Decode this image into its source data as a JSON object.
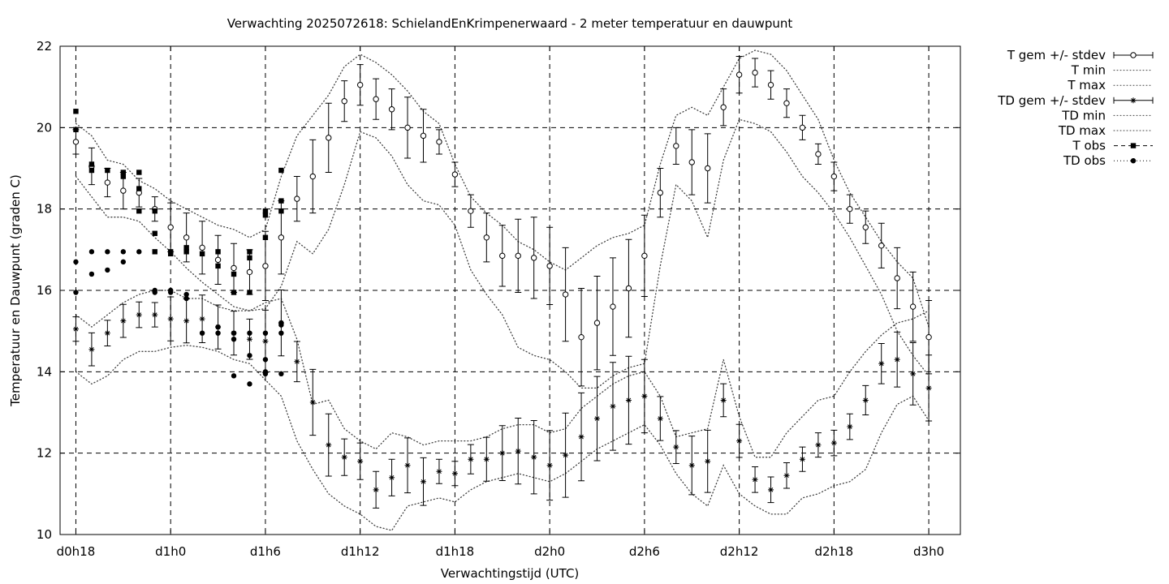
{
  "chart_data": {
    "type": "line",
    "title": "Verwachting 2025072618: SchielandEnKrimpenerwaard - 2 meter temperatuur en dauwpunt",
    "xlabel": "Verwachtingstijd (UTC)",
    "ylabel": "Temperatuur en Dauwpunt (graden C)",
    "ylim": [
      10,
      22
    ],
    "xlim": [
      17,
      74
    ],
    "x_unit": "hours since d0h0",
    "yticks": [
      "10",
      "12",
      "14",
      "16",
      "18",
      "20",
      "22"
    ],
    "yticks_values": [
      10,
      12,
      14,
      16,
      18,
      20,
      22
    ],
    "xticks": [
      "d0h18",
      "d1h0",
      "d1h6",
      "d1h12",
      "d1h18",
      "d2h0",
      "d2h6",
      "d2h12",
      "d2h18",
      "d3h0"
    ],
    "xticks_values": [
      18,
      24,
      30,
      36,
      42,
      48,
      54,
      60,
      66,
      72
    ],
    "grid": true,
    "legend_position": "outside-right",
    "legend": [
      "T gem +/- stdev",
      "T min",
      "T max",
      "TD gem +/- stdev",
      "TD min",
      "TD max",
      "T obs",
      "TD obs"
    ],
    "series": [
      {
        "name": "T gem +/- stdev",
        "style": "open-circle-errorbars",
        "x": [
          18,
          19,
          20,
          21,
          22,
          23,
          24,
          25,
          26,
          27,
          28,
          29,
          30,
          31,
          32,
          33,
          34,
          35,
          36,
          37,
          38,
          39,
          40,
          41,
          42,
          43,
          44,
          45,
          46,
          47,
          48,
          49,
          50,
          51,
          52,
          53,
          54,
          55,
          56,
          57,
          58,
          59,
          60,
          61,
          62,
          63,
          64,
          65,
          66,
          67,
          68,
          69,
          70,
          71,
          72
        ],
        "mean": [
          19.65,
          19.05,
          18.65,
          18.45,
          18.4,
          18.0,
          17.55,
          17.3,
          17.05,
          16.75,
          16.55,
          16.45,
          16.6,
          17.3,
          18.25,
          18.8,
          19.75,
          20.65,
          21.05,
          20.7,
          20.45,
          20.0,
          19.8,
          19.65,
          18.85,
          17.95,
          17.3,
          16.85,
          16.85,
          16.8,
          16.6,
          15.9,
          14.85,
          15.2,
          15.6,
          16.05,
          16.85,
          18.4,
          19.55,
          19.15,
          19.0,
          20.5,
          21.3,
          21.35,
          21.05,
          20.6,
          20.0,
          19.35,
          18.8,
          18.0,
          17.55,
          17.1,
          16.3,
          15.6,
          14.85
        ],
        "stdev": [
          0.3,
          0.45,
          0.35,
          0.45,
          0.35,
          0.3,
          0.6,
          0.6,
          0.65,
          0.6,
          0.6,
          0.55,
          0.85,
          0.9,
          0.55,
          0.9,
          0.85,
          0.5,
          0.5,
          0.5,
          0.5,
          0.75,
          0.65,
          0.3,
          0.3,
          0.4,
          0.6,
          0.75,
          0.9,
          1.0,
          0.95,
          1.15,
          1.2,
          1.15,
          1.2,
          1.2,
          1.0,
          0.6,
          0.45,
          0.8,
          0.85,
          0.45,
          0.45,
          0.35,
          0.35,
          0.35,
          0.3,
          0.25,
          0.35,
          0.35,
          0.4,
          0.55,
          0.75,
          0.85,
          0.9
        ]
      },
      {
        "name": "T min",
        "style": "dotted",
        "x": [
          18,
          19,
          20,
          21,
          22,
          23,
          24,
          25,
          26,
          27,
          28,
          29,
          30,
          31,
          32,
          33,
          34,
          35,
          36,
          37,
          38,
          39,
          40,
          41,
          42,
          43,
          44,
          45,
          46,
          47,
          48,
          49,
          50,
          51,
          52,
          53,
          54,
          55,
          56,
          57,
          58,
          59,
          60,
          61,
          62,
          63,
          64,
          65,
          66,
          67,
          68,
          69,
          70,
          71,
          72
        ],
        "values": [
          18.8,
          18.3,
          17.8,
          17.8,
          17.7,
          17.3,
          16.95,
          16.55,
          16.2,
          15.9,
          15.6,
          15.5,
          15.55,
          16.1,
          17.2,
          16.9,
          17.5,
          18.6,
          19.9,
          19.75,
          19.3,
          18.6,
          18.2,
          18.1,
          17.6,
          16.5,
          15.9,
          15.4,
          14.6,
          14.4,
          14.3,
          14.0,
          13.6,
          13.6,
          13.9,
          14.1,
          14.2,
          16.6,
          18.6,
          18.2,
          17.3,
          19.2,
          20.2,
          20.1,
          19.9,
          19.4,
          18.8,
          18.4,
          17.9,
          17.3,
          16.6,
          15.9,
          15.0,
          14.4,
          13.9
        ]
      },
      {
        "name": "T max",
        "style": "dotted",
        "x": [
          18,
          19,
          20,
          21,
          22,
          23,
          24,
          25,
          26,
          27,
          28,
          29,
          30,
          31,
          32,
          33,
          34,
          35,
          36,
          37,
          38,
          39,
          40,
          41,
          42,
          43,
          44,
          45,
          46,
          47,
          48,
          49,
          50,
          51,
          52,
          53,
          54,
          55,
          56,
          57,
          58,
          59,
          60,
          61,
          62,
          63,
          64,
          65,
          66,
          67,
          68,
          69,
          70,
          71,
          72
        ],
        "values": [
          20.1,
          19.8,
          19.2,
          19.1,
          18.7,
          18.5,
          18.2,
          18.0,
          17.8,
          17.6,
          17.5,
          17.3,
          17.5,
          18.8,
          19.8,
          20.3,
          20.8,
          21.5,
          21.8,
          21.6,
          21.3,
          20.9,
          20.4,
          20.1,
          19.1,
          18.3,
          17.9,
          17.6,
          17.2,
          17.0,
          16.7,
          16.5,
          16.8,
          17.1,
          17.3,
          17.4,
          17.6,
          19.1,
          20.3,
          20.5,
          20.3,
          21.0,
          21.7,
          21.9,
          21.8,
          21.4,
          20.8,
          20.2,
          19.2,
          18.4,
          17.8,
          17.2,
          16.7,
          16.3,
          15.1
        ]
      },
      {
        "name": "TD gem +/- stdev",
        "style": "star-errorbars",
        "x": [
          18,
          19,
          20,
          21,
          22,
          23,
          24,
          25,
          26,
          27,
          28,
          29,
          30,
          31,
          32,
          33,
          34,
          35,
          36,
          37,
          38,
          39,
          40,
          41,
          42,
          43,
          44,
          45,
          46,
          47,
          48,
          49,
          50,
          51,
          52,
          53,
          54,
          55,
          56,
          57,
          58,
          59,
          60,
          61,
          62,
          63,
          64,
          65,
          66,
          67,
          68,
          69,
          70,
          71,
          72
        ],
        "mean": [
          15.05,
          14.55,
          14.95,
          15.25,
          15.4,
          15.4,
          15.3,
          15.25,
          15.3,
          15.1,
          14.95,
          14.8,
          14.75,
          15.2,
          14.25,
          13.25,
          12.2,
          11.9,
          11.8,
          11.1,
          11.4,
          11.7,
          11.3,
          11.55,
          11.5,
          11.85,
          11.85,
          12.0,
          12.05,
          11.9,
          11.7,
          11.95,
          12.4,
          12.85,
          13.15,
          13.3,
          13.4,
          12.85,
          12.15,
          11.7,
          11.8,
          13.3,
          12.3,
          11.35,
          11.1,
          11.45,
          11.85,
          12.2,
          12.25,
          12.65,
          13.3,
          14.2,
          14.3,
          13.95,
          13.6
        ]
      },
      {
        "name": "TD min",
        "style": "dotted",
        "x": [
          18,
          19,
          20,
          21,
          22,
          23,
          24,
          25,
          26,
          27,
          28,
          29,
          30,
          31,
          32,
          33,
          34,
          35,
          36,
          37,
          38,
          39,
          40,
          41,
          42,
          43,
          44,
          45,
          46,
          47,
          48,
          49,
          50,
          51,
          52,
          53,
          54,
          55,
          56,
          57,
          58,
          59,
          60,
          61,
          62,
          63,
          64,
          65,
          66,
          67,
          68,
          69,
          70,
          71,
          72
        ],
        "values": [
          14.0,
          13.7,
          13.9,
          14.3,
          14.5,
          14.5,
          14.6,
          14.65,
          14.6,
          14.5,
          14.3,
          14.2,
          13.8,
          13.4,
          12.3,
          11.6,
          11.0,
          10.7,
          10.5,
          10.2,
          10.1,
          10.7,
          10.8,
          10.9,
          10.8,
          11.1,
          11.3,
          11.4,
          11.5,
          11.4,
          11.3,
          11.5,
          11.8,
          12.1,
          12.3,
          12.5,
          12.7,
          12.2,
          11.5,
          11.0,
          10.7,
          11.7,
          11.0,
          10.7,
          10.5,
          10.5,
          10.9,
          11.0,
          11.2,
          11.3,
          11.6,
          12.5,
          13.2,
          13.4,
          12.8
        ]
      },
      {
        "name": "TD max",
        "style": "dotted",
        "x": [
          18,
          19,
          20,
          21,
          22,
          23,
          24,
          25,
          26,
          27,
          28,
          29,
          30,
          31,
          32,
          33,
          34,
          35,
          36,
          37,
          38,
          39,
          40,
          41,
          42,
          43,
          44,
          45,
          46,
          47,
          48,
          49,
          50,
          51,
          52,
          53,
          54,
          55,
          56,
          57,
          58,
          59,
          60,
          61,
          62,
          63,
          64,
          65,
          66,
          67,
          68,
          69,
          70,
          71,
          72
        ],
        "values": [
          15.4,
          15.1,
          15.4,
          15.7,
          15.9,
          16.0,
          16.0,
          15.8,
          15.8,
          15.6,
          15.5,
          15.5,
          15.7,
          15.8,
          14.8,
          13.2,
          13.3,
          12.6,
          12.3,
          12.1,
          12.5,
          12.4,
          12.2,
          12.3,
          12.3,
          12.3,
          12.4,
          12.6,
          12.7,
          12.7,
          12.5,
          12.6,
          13.1,
          13.4,
          13.7,
          13.9,
          14.0,
          13.4,
          12.4,
          12.5,
          12.6,
          14.3,
          12.9,
          11.9,
          11.9,
          12.5,
          12.9,
          13.3,
          13.4,
          14.0,
          14.5,
          14.9,
          15.2,
          15.3,
          15.5
        ]
      },
      {
        "name": "T obs",
        "style": "filled-square",
        "x": [
          18,
          18,
          19,
          19,
          20,
          21,
          21,
          22,
          22,
          22,
          23,
          23,
          23,
          24,
          24,
          25,
          25,
          26,
          27,
          27,
          28,
          28,
          29,
          29,
          29,
          30,
          30,
          30,
          31,
          31,
          31
        ],
        "values": [
          20.4,
          19.95,
          19.1,
          18.95,
          18.95,
          18.9,
          18.8,
          18.9,
          18.5,
          17.95,
          17.95,
          17.4,
          16.95,
          16.95,
          16.9,
          17.05,
          16.95,
          16.9,
          16.95,
          16.6,
          16.4,
          15.95,
          16.95,
          16.8,
          15.95,
          17.95,
          17.85,
          17.3,
          18.95,
          18.2,
          17.95
        ]
      },
      {
        "name": "TD obs",
        "style": "filled-circle",
        "x": [
          18,
          18,
          19,
          19,
          20,
          20,
          21,
          21,
          22,
          23,
          23,
          24,
          24,
          25,
          25,
          26,
          27,
          27,
          28,
          28,
          28,
          29,
          29,
          29,
          30,
          30,
          30,
          30,
          31,
          31,
          31,
          31
        ],
        "values": [
          16.7,
          15.95,
          16.95,
          16.4,
          16.95,
          16.5,
          16.95,
          16.7,
          16.95,
          16.0,
          15.95,
          16.0,
          15.95,
          15.9,
          15.8,
          14.95,
          15.1,
          14.95,
          14.95,
          14.8,
          13.9,
          14.95,
          14.4,
          13.7,
          14.95,
          14.3,
          14.0,
          13.95,
          15.2,
          14.95,
          13.95,
          15.15
        ]
      }
    ]
  }
}
